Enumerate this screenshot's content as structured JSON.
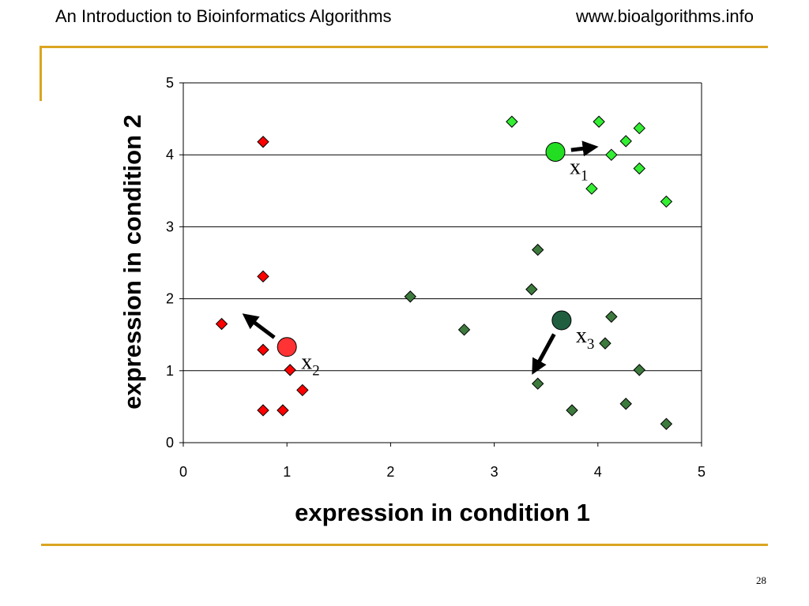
{
  "header": {
    "title": "An Introduction to Bioinformatics Algorithms",
    "url": "www.bioalgorithms.info"
  },
  "page_number": "28",
  "colors": {
    "rule": "#DAA520",
    "cluster_red": "#FF0000",
    "cluster_light_green": "#33EE33",
    "cluster_dark_green": "#3D7A3D",
    "centroid_red": "#FF3333",
    "centroid_light_green": "#22DD22",
    "centroid_dark_green": "#1F5F3F"
  },
  "chart_data": {
    "type": "scatter",
    "xlabel": "expression in condition 1",
    "ylabel": "expression in condition 2",
    "xlim": [
      0,
      5
    ],
    "ylim": [
      0,
      5
    ],
    "xticks": [
      "0",
      "1",
      "2",
      "3",
      "4",
      "5"
    ],
    "yticks": [
      "0",
      "1",
      "2",
      "3",
      "4",
      "5"
    ],
    "grid": "horizontal",
    "series": [
      {
        "color": "#FF0000",
        "marker": "diamond",
        "points": [
          [
            0.77,
            4.18
          ],
          [
            0.77,
            2.31
          ],
          [
            0.37,
            1.65
          ],
          [
            0.77,
            1.29
          ],
          [
            1.03,
            1.01
          ],
          [
            1.15,
            0.73
          ],
          [
            0.77,
            0.45
          ],
          [
            0.96,
            0.45
          ]
        ]
      },
      {
        "color": "#33EE33",
        "marker": "diamond",
        "points": [
          [
            3.17,
            4.46
          ],
          [
            4.01,
            4.46
          ],
          [
            4.4,
            4.37
          ],
          [
            4.27,
            4.19
          ],
          [
            4.13,
            4.0
          ],
          [
            4.4,
            3.81
          ],
          [
            3.94,
            3.53
          ],
          [
            4.66,
            3.35
          ]
        ]
      },
      {
        "color": "#3D7A3D",
        "marker": "diamond",
        "points": [
          [
            3.42,
            2.68
          ],
          [
            2.19,
            2.03
          ],
          [
            3.36,
            2.13
          ],
          [
            2.71,
            1.57
          ],
          [
            4.13,
            1.75
          ],
          [
            4.07,
            1.38
          ],
          [
            4.4,
            1.01
          ],
          [
            3.42,
            0.82
          ],
          [
            3.75,
            0.45
          ],
          [
            4.27,
            0.54
          ],
          [
            4.66,
            0.26
          ]
        ]
      }
    ],
    "centroids": [
      {
        "label": "x",
        "subscript": "1",
        "x": 3.59,
        "y": 4.04,
        "color": "#22DD22",
        "arrow_to": [
          3.93,
          4.1
        ]
      },
      {
        "label": "x",
        "subscript": "2",
        "x": 1.0,
        "y": 1.33,
        "color": "#FF3333",
        "arrow_to": [
          0.63,
          1.73
        ]
      },
      {
        "label": "x",
        "subscript": "3",
        "x": 3.65,
        "y": 1.7,
        "color": "#1F5F3F",
        "arrow_to": [
          3.4,
          1.04
        ]
      }
    ]
  }
}
